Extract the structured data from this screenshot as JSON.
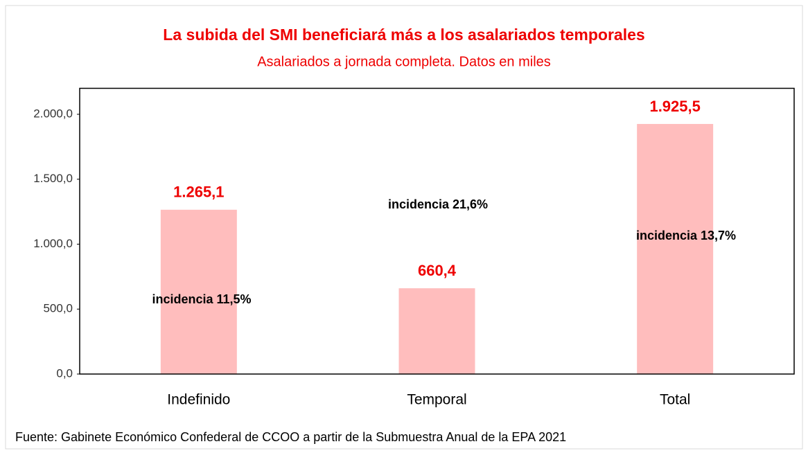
{
  "chart_data": {
    "type": "bar",
    "title": "La subida del SMI beneficiará más a los asalariados temporales",
    "subtitle": "Asalariados a jornada completa. Datos en miles",
    "categories": [
      "Indefinido",
      "Temporal",
      "Total"
    ],
    "values": [
      1265.1,
      660.4,
      1925.5
    ],
    "value_labels": [
      "1.265,1",
      "660,4",
      "1.925,5"
    ],
    "color": "#ffbdbd",
    "ylim": [
      0,
      2200
    ],
    "yticks": [
      {
        "value": 0,
        "label": "0,0"
      },
      {
        "value": 500,
        "label": "500,0"
      },
      {
        "value": 1000,
        "label": "1.000,0"
      },
      {
        "value": 1500,
        "label": "1.500,0"
      },
      {
        "value": 2000,
        "label": "2.000,0"
      }
    ],
    "annotations": [
      "incidencia 11,5%",
      "incidencia 21,6%",
      "incidencia 13,7%"
    ],
    "source": "Fuente: Gabinete Económico Confederal de CCOO a partir de la Submuestra Anual de la EPA 2021"
  }
}
